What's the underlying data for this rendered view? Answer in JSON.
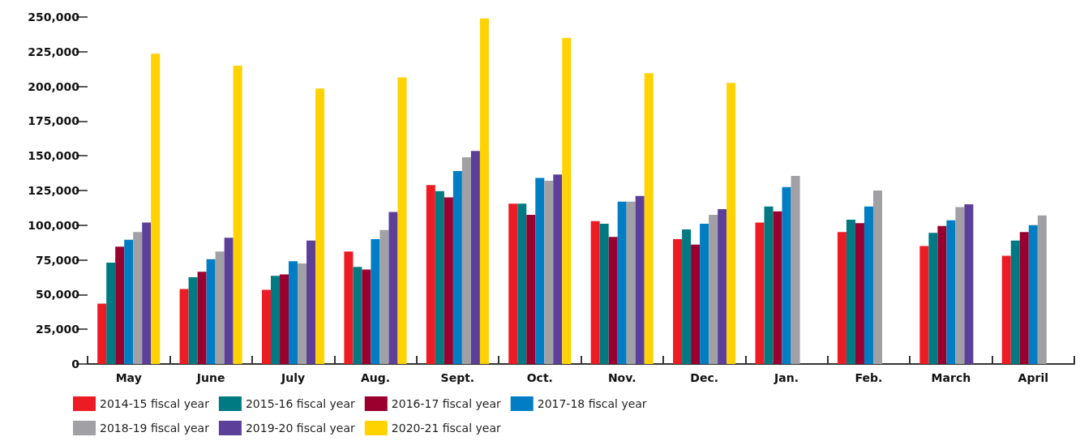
{
  "chart_data": {
    "type": "bar",
    "categories": [
      "May",
      "June",
      "July",
      "Aug.",
      "Sept.",
      "Oct.",
      "Nov.",
      "Dec.",
      "Jan.",
      "Feb.",
      "March",
      "April"
    ],
    "series": [
      {
        "name": "2014-15 fiscal year",
        "color": "#ed1c24",
        "values": [
          43500,
          54000,
          53500,
          81000,
          129000,
          115500,
          103000,
          90000,
          102000,
          95000,
          85000,
          78000
        ]
      },
      {
        "name": "2015-16 fiscal year",
        "color": "#007a82",
        "values": [
          73000,
          62500,
          63500,
          70000,
          124500,
          115500,
          101000,
          97000,
          113500,
          104000,
          94500,
          89000
        ]
      },
      {
        "name": "2016-17 fiscal year",
        "color": "#990030",
        "values": [
          84500,
          66500,
          64500,
          68000,
          120000,
          107500,
          91500,
          86000,
          110000,
          101500,
          99500,
          95000
        ]
      },
      {
        "name": "2017-18 fiscal year",
        "color": "#007dc3",
        "values": [
          89500,
          75500,
          74000,
          90000,
          139000,
          134000,
          117000,
          101000,
          127500,
          113500,
          103500,
          100000
        ]
      },
      {
        "name": "2018-19 fiscal year",
        "color": "#a0a0a5",
        "values": [
          95000,
          81000,
          72500,
          96500,
          149000,
          132000,
          117000,
          107500,
          135500,
          125000,
          113000,
          107000
        ]
      },
      {
        "name": "2019-20 fiscal year",
        "color": "#5b3f98",
        "values": [
          102000,
          91000,
          89000,
          109500,
          153500,
          136500,
          121000,
          111500,
          null,
          null,
          115000,
          null
        ]
      },
      {
        "name": "2020-21 fiscal year",
        "color": "#ffd200",
        "values": [
          223500,
          215000,
          198500,
          206500,
          249000,
          235000,
          209500,
          202500,
          null,
          null,
          null,
          null
        ]
      }
    ],
    "ylim": [
      0,
      250000
    ],
    "yticks": [
      0,
      {
        "value": 25000,
        "label": "25,000"
      },
      {
        "value": 50000,
        "label": "50,000"
      },
      {
        "value": 75000,
        "label": "75,000"
      },
      {
        "value": 100000,
        "label": "100,000"
      },
      {
        "value": 125000,
        "label": "125,000"
      },
      {
        "value": 150000,
        "label": "150,000"
      },
      {
        "value": 175000,
        "label": "175,000"
      },
      {
        "value": 200000,
        "label": "200,000"
      },
      {
        "value": 225000,
        "label": "225,000"
      },
      {
        "value": 250000,
        "label": "250,000"
      }
    ],
    "legend": "bottom"
  }
}
